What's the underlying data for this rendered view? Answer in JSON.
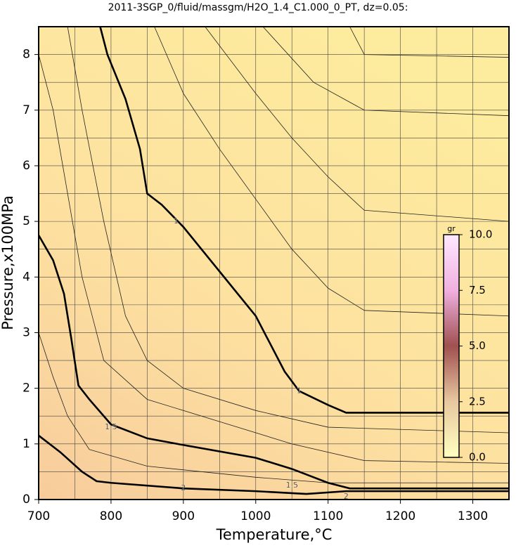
{
  "chart_data": {
    "type": "contour",
    "title": "2011-3SGP_0/fluid/massgm/H2O_1.4_C1.000_0_PT, dz=0.05:",
    "x_label": "Temperature,°C",
    "y_label": "Pressure,x100MPa",
    "xlim": [
      700,
      1350
    ],
    "ylim": [
      0,
      8.5
    ],
    "xticks": [
      700,
      800,
      900,
      1000,
      1100,
      1200,
      1300
    ],
    "yticks": [
      0,
      1,
      2,
      3,
      4,
      5,
      6,
      7,
      8
    ],
    "xgrid": [
      750,
      850,
      950,
      1050,
      1150,
      1250
    ],
    "ygrid": [
      0.5,
      1.5,
      2.5,
      3.5,
      4.5,
      5.5,
      6.5,
      7.5
    ],
    "series": [
      {
        "name": "1",
        "color": "#000000",
        "x": [
          785,
          795,
          820,
          840,
          850,
          870,
          900,
          950,
          1000,
          1040,
          1060,
          1100,
          1125,
          1350
        ],
        "y": [
          8.5,
          8.0,
          7.2,
          6.3,
          5.5,
          5.3,
          4.9,
          4.1,
          3.3,
          2.3,
          1.95,
          1.7,
          1.56,
          1.56
        ]
      },
      {
        "name": "1.5",
        "color": "#000000",
        "x": [
          700,
          720,
          735,
          745,
          755,
          770,
          800,
          850,
          900,
          1000,
          1050,
          1100,
          1130,
          1350
        ],
        "y": [
          4.75,
          4.3,
          3.7,
          2.9,
          2.05,
          1.8,
          1.35,
          1.1,
          0.98,
          0.75,
          0.55,
          0.3,
          0.2,
          0.2
        ]
      },
      {
        "name": "2",
        "color": "#000000",
        "x": [
          700,
          730,
          760,
          780,
          800,
          900,
          1000,
          1070,
          1125,
          1350
        ],
        "y": [
          1.15,
          0.85,
          0.5,
          0.33,
          0.3,
          0.2,
          0.15,
          0.1,
          0.15,
          0.15
        ]
      }
    ],
    "thin_lines": [
      {
        "x": [
          860,
          900,
          950,
          1000,
          1050,
          1100,
          1150,
          1350
        ],
        "y": [
          8.5,
          7.3,
          6.3,
          5.4,
          4.5,
          3.8,
          3.4,
          3.3
        ]
      },
      {
        "x": [
          930,
          1000,
          1050,
          1100,
          1150,
          1350
        ],
        "y": [
          8.5,
          7.3,
          6.5,
          5.8,
          5.2,
          5.0
        ]
      },
      {
        "x": [
          1010,
          1080,
          1150,
          1350
        ],
        "y": [
          8.5,
          7.5,
          7.0,
          6.9
        ]
      },
      {
        "x": [
          1130,
          1150,
          1350
        ],
        "y": [
          8.5,
          8.0,
          7.95
        ]
      },
      {
        "x": [
          740,
          760,
          790,
          820,
          850,
          900,
          1000,
          1100,
          1350
        ],
        "y": [
          8.5,
          7.0,
          5.0,
          3.3,
          2.5,
          2.0,
          1.6,
          1.3,
          1.2
        ]
      },
      {
        "x": [
          700,
          720,
          740,
          760,
          790,
          850,
          950,
          1050,
          1150,
          1350
        ],
        "y": [
          8.0,
          7.0,
          5.5,
          4.0,
          2.5,
          1.8,
          1.4,
          1.0,
          0.7,
          0.65
        ]
      },
      {
        "x": [
          700,
          720,
          740,
          770,
          850,
          1000,
          1100,
          1350
        ],
        "y": [
          3.0,
          2.2,
          1.5,
          0.9,
          0.6,
          0.4,
          0.3,
          0.3
        ]
      }
    ],
    "contour_labels": [
      {
        "text": "1",
        "x": 890,
        "y": 5.0
      },
      {
        "text": "1",
        "x": 1060,
        "y": 1.95
      },
      {
        "text": "1.5",
        "x": 800,
        "y": 1.3
      },
      {
        "text": "1.5",
        "x": 1050,
        "y": 0.25
      },
      {
        "text": "2",
        "x": 900,
        "y": 0.2
      },
      {
        "text": "2",
        "x": 1125,
        "y": 0.05
      }
    ],
    "colorbar": {
      "label": "gr",
      "lim": [
        0,
        10
      ],
      "ticks": [
        {
          "value": 0,
          "label": "0.0"
        },
        {
          "value": 2.5,
          "label": "2.5"
        },
        {
          "value": 5,
          "label": "5.0"
        },
        {
          "value": 7.5,
          "label": "7.5"
        },
        {
          "value": 10,
          "label": "10.0"
        }
      ]
    }
  }
}
